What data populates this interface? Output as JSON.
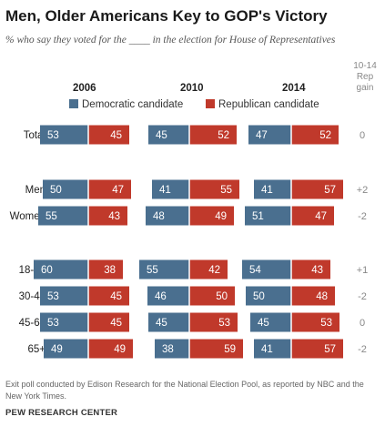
{
  "title": "Men, Older Americans Key to GOP's Victory",
  "subtitle": "% who say they voted for the ____ in the election for House of Representatives",
  "rep_gain_header": [
    "10-14",
    "Rep",
    "gain"
  ],
  "legend": {
    "democratic": "Democratic candidate",
    "republican": "Republican candidate"
  },
  "colors": {
    "democratic": "#4a6f8f",
    "republican": "#c0392b"
  },
  "footnote": "Exit poll conducted by Edison Research for the National Election Pool, as reported by NBC and the New York Times.",
  "source": "PEW RESEARCH CENTER",
  "chart_data": {
    "type": "bar",
    "years": [
      "2006",
      "2010",
      "2014"
    ],
    "categories": [
      "Total",
      "Men",
      "Women",
      "18-29",
      "30-44",
      "45-64",
      "65+"
    ],
    "series": [
      {
        "name": "Democratic candidate",
        "values": {
          "2006": [
            53,
            50,
            55,
            60,
            53,
            53,
            49
          ],
          "2010": [
            45,
            41,
            48,
            55,
            46,
            45,
            38
          ],
          "2014": [
            47,
            41,
            51,
            54,
            50,
            45,
            41
          ]
        }
      },
      {
        "name": "Republican candidate",
        "values": {
          "2006": [
            45,
            47,
            43,
            38,
            45,
            45,
            49
          ],
          "2010": [
            52,
            55,
            49,
            42,
            50,
            53,
            59
          ],
          "2014": [
            52,
            57,
            47,
            43,
            48,
            53,
            57
          ]
        }
      }
    ],
    "rep_gain": [
      "0",
      "+2",
      "-2",
      "+1",
      "-2",
      "0",
      "-2"
    ]
  }
}
